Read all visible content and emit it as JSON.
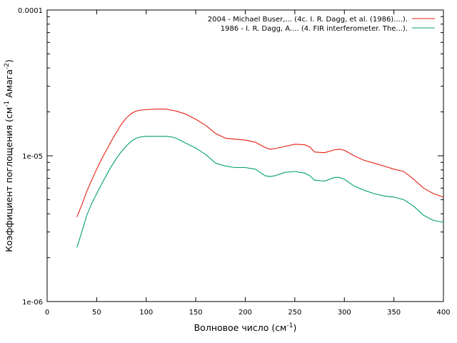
{
  "chart_data": {
    "type": "line",
    "xlabel": "Волновое число (см",
    "xlabel_sup": "-1",
    "xlabel_tail": ")",
    "ylabel_parts": [
      "Коэффициент поглощения (см",
      "-1",
      " Амага",
      "-2",
      ")"
    ],
    "xlim": [
      0,
      400
    ],
    "ylim": [
      1e-06,
      0.0001
    ],
    "yscale": "log",
    "x_ticks": [
      "0",
      "50",
      "100",
      "150",
      "200",
      "250",
      "300",
      "350",
      "400"
    ],
    "y_ticks": [
      "1e-06",
      "1e-05",
      "0.0001"
    ],
    "grid": false,
    "legend_position": "top-right",
    "series": [
      {
        "name": "2004 - Michael Buser,... (4c. I. R. Dagg, et al. (1986)....).",
        "color": "#e51e10",
        "x": [
          30,
          35,
          40,
          45,
          50,
          55,
          60,
          65,
          70,
          75,
          80,
          85,
          90,
          95,
          100,
          110,
          120,
          125,
          130,
          140,
          150,
          160,
          170,
          180,
          190,
          200,
          210,
          220,
          225,
          230,
          240,
          250,
          260,
          265,
          270,
          280,
          290,
          295,
          300,
          310,
          320,
          330,
          340,
          350,
          360,
          370,
          380,
          390,
          400
        ],
        "y": [
          3.8e-06,
          4.6e-06,
          5.7e-06,
          6.8e-06,
          8.1e-06,
          9.5e-06,
          1.1e-05,
          1.27e-05,
          1.45e-05,
          1.65e-05,
          1.82e-05,
          1.95e-05,
          2.03e-05,
          2.06e-05,
          2.07e-05,
          2.09e-05,
          2.09e-05,
          2.06e-05,
          2.03e-05,
          1.93e-05,
          1.78e-05,
          1.62e-05,
          1.42e-05,
          1.32e-05,
          1.3e-05,
          1.28e-05,
          1.24e-05,
          1.14e-05,
          1.11e-05,
          1.12e-05,
          1.16e-05,
          1.2e-05,
          1.19e-05,
          1.15e-05,
          1.06e-05,
          1.05e-05,
          1.1e-05,
          1.11e-05,
          1.09e-05,
          1e-05,
          9.3e-06,
          8.9e-06,
          8.5e-06,
          8.1e-06,
          7.8e-06,
          6.9e-06,
          6e-06,
          5.5e-06,
          5.2e-06
        ]
      },
      {
        "name": "1986 - I. R. Dagg, A.... (4. FIR interferometer. The...).",
        "color": "#009e73",
        "x": [
          30,
          35,
          40,
          45,
          50,
          55,
          60,
          65,
          70,
          75,
          80,
          85,
          90,
          95,
          100,
          110,
          120,
          125,
          130,
          140,
          150,
          160,
          170,
          180,
          190,
          200,
          210,
          220,
          225,
          230,
          240,
          250,
          260,
          265,
          270,
          280,
          290,
          295,
          300,
          310,
          320,
          330,
          340,
          350,
          360,
          370,
          380,
          390,
          400
        ],
        "y": [
          2.35e-06,
          3e-06,
          3.9e-06,
          4.7e-06,
          5.5e-06,
          6.4e-06,
          7.4e-06,
          8.5e-06,
          9.6e-06,
          1.07e-05,
          1.17e-05,
          1.26e-05,
          1.32e-05,
          1.35e-05,
          1.36e-05,
          1.36e-05,
          1.36e-05,
          1.35e-05,
          1.32e-05,
          1.22e-05,
          1.13e-05,
          1.02e-05,
          8.9e-06,
          8.5e-06,
          8.3e-06,
          8.3e-06,
          8.1e-06,
          7.3e-06,
          7.2e-06,
          7.3e-06,
          7.7e-06,
          7.8e-06,
          7.6e-06,
          7.3e-06,
          6.8e-06,
          6.7e-06,
          7.1e-06,
          7.1e-06,
          6.9e-06,
          6.2e-06,
          5.8e-06,
          5.5e-06,
          5.3e-06,
          5.2e-06,
          5e-06,
          4.5e-06,
          3.9e-06,
          3.6e-06,
          3.5e-06
        ]
      }
    ]
  }
}
